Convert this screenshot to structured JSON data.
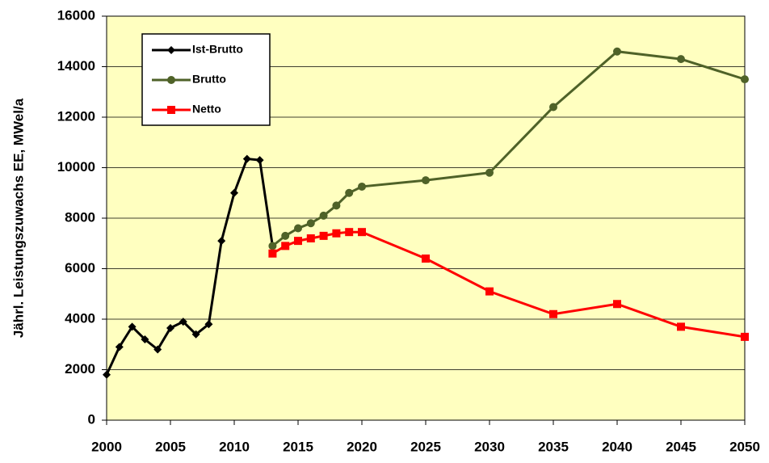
{
  "chart_data": {
    "type": "line",
    "y_label": "Jährl. Leistungszuwachs  EE, MWel/a",
    "xlim": [
      2000,
      2050
    ],
    "xticks": [
      2000,
      2005,
      2010,
      2015,
      2020,
      2025,
      2030,
      2035,
      2040,
      2045,
      2050
    ],
    "ylim": [
      0,
      16000
    ],
    "yticks": [
      0,
      2000,
      4000,
      6000,
      8000,
      10000,
      12000,
      14000,
      16000
    ],
    "grid": true,
    "legend": "upper left",
    "background": "#ffffc0",
    "series": [
      {
        "name": "Ist-Brutto",
        "color": "#000000",
        "marker": "diamond",
        "x": [
          2000,
          2001,
          2002,
          2003,
          2004,
          2005,
          2006,
          2007,
          2008,
          2009,
          2010,
          2011,
          2012,
          2013
        ],
        "values": [
          1800,
          2900,
          3700,
          3200,
          2800,
          3650,
          3900,
          3400,
          3800,
          7100,
          9000,
          10350,
          10300,
          6900
        ]
      },
      {
        "name": "Brutto",
        "color": "#4f6228",
        "marker": "circle",
        "x": [
          2013,
          2014,
          2015,
          2016,
          2017,
          2018,
          2019,
          2020,
          2025,
          2030,
          2035,
          2040,
          2045,
          2050
        ],
        "values": [
          6900,
          7300,
          7600,
          7800,
          8100,
          8500,
          9000,
          9250,
          9500,
          9800,
          12400,
          14600,
          14300,
          13500
        ]
      },
      {
        "name": "Netto",
        "color": "#ff0000",
        "marker": "square",
        "x": [
          2013,
          2014,
          2015,
          2016,
          2017,
          2018,
          2019,
          2020,
          2025,
          2030,
          2035,
          2040,
          2045,
          2050
        ],
        "values": [
          6600,
          6900,
          7100,
          7200,
          7300,
          7400,
          7450,
          7450,
          6400,
          5100,
          4200,
          4600,
          3700,
          3300
        ]
      }
    ]
  }
}
